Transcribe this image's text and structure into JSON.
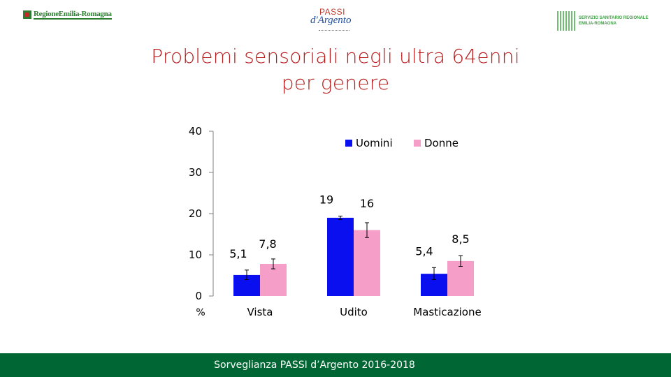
{
  "header": {
    "logo_left_text": "RegioneEmilia-Romagna",
    "logo_center_passi": "PASSI",
    "logo_center_argento": "d'Argento",
    "logo_right_line1": "SERVIZIO SANITARIO REGIONALE",
    "logo_right_line2": "EMILIA-ROMAGNA"
  },
  "title": {
    "line1": "Problemi sensoriali negli ultra 64enni",
    "line2": "per genere"
  },
  "footer": {
    "text": "Sorveglianza PASSI d’Argento 2016-2018"
  },
  "colors": {
    "uomini": "#0a0ff0",
    "donne": "#f59ec8",
    "title": "#b71c1c",
    "footer": "#006633"
  },
  "chart_data": {
    "type": "bar",
    "title": "Problemi sensoriali negli ultra 64enni per genere",
    "xlabel": "",
    "ylabel": "%",
    "ylim": [
      0,
      40
    ],
    "yticks": [
      0,
      10,
      20,
      30,
      40
    ],
    "categories": [
      "Vista",
      "Udito",
      "Masticazione"
    ],
    "series": [
      {
        "name": "Uomini",
        "values": [
          5.1,
          19,
          5.4
        ],
        "labels": [
          "5,1",
          "19",
          "5,4"
        ],
        "ci_low": [
          4.0,
          18.6,
          4.0
        ],
        "ci_high": [
          6.3,
          19.4,
          6.9
        ]
      },
      {
        "name": "Donne",
        "values": [
          7.8,
          16,
          8.5
        ],
        "labels": [
          "7,8",
          "16",
          "8,5"
        ],
        "ci_low": [
          6.6,
          14.2,
          7.2
        ],
        "ci_high": [
          9.0,
          17.8,
          9.8
        ]
      }
    ],
    "legend": "top"
  }
}
